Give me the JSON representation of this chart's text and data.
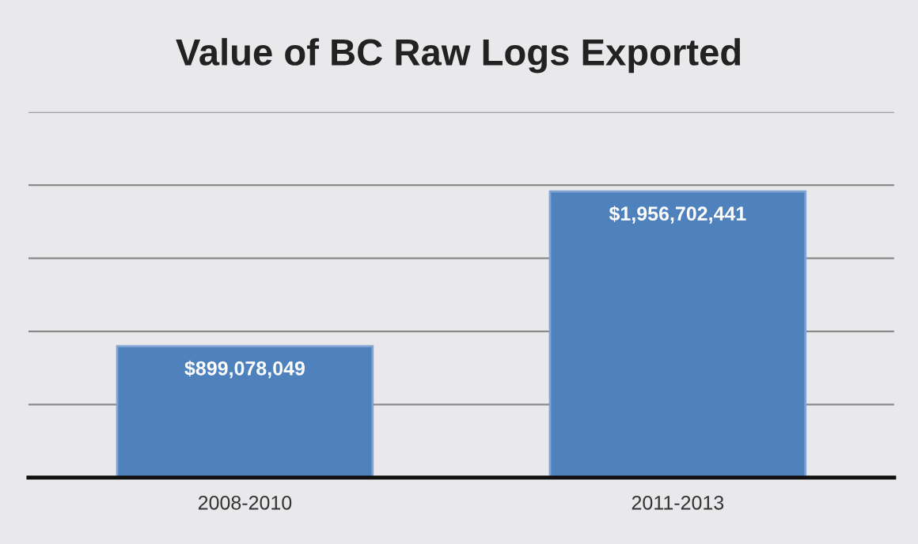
{
  "chart_data": {
    "type": "bar",
    "title": "Value of BC Raw Logs Exported",
    "categories": [
      "2008-2010",
      "2011-2013"
    ],
    "values": [
      899078049,
      1956702441
    ],
    "value_labels": [
      "$899,078,049",
      "$1,956,702,441"
    ],
    "color": "#4f81bd",
    "ylim": [
      0,
      2500000000
    ],
    "yticks": [
      {
        "value": 0,
        "label": null
      },
      {
        "value": 500000000,
        "label": null
      },
      {
        "value": 1000000000,
        "label": null
      },
      {
        "value": 1500000000,
        "label": null
      },
      {
        "value": 2000000000,
        "label": null
      },
      {
        "value": 2500000000,
        "label": null
      }
    ],
    "grid": "y",
    "tick_labels": "x"
  }
}
